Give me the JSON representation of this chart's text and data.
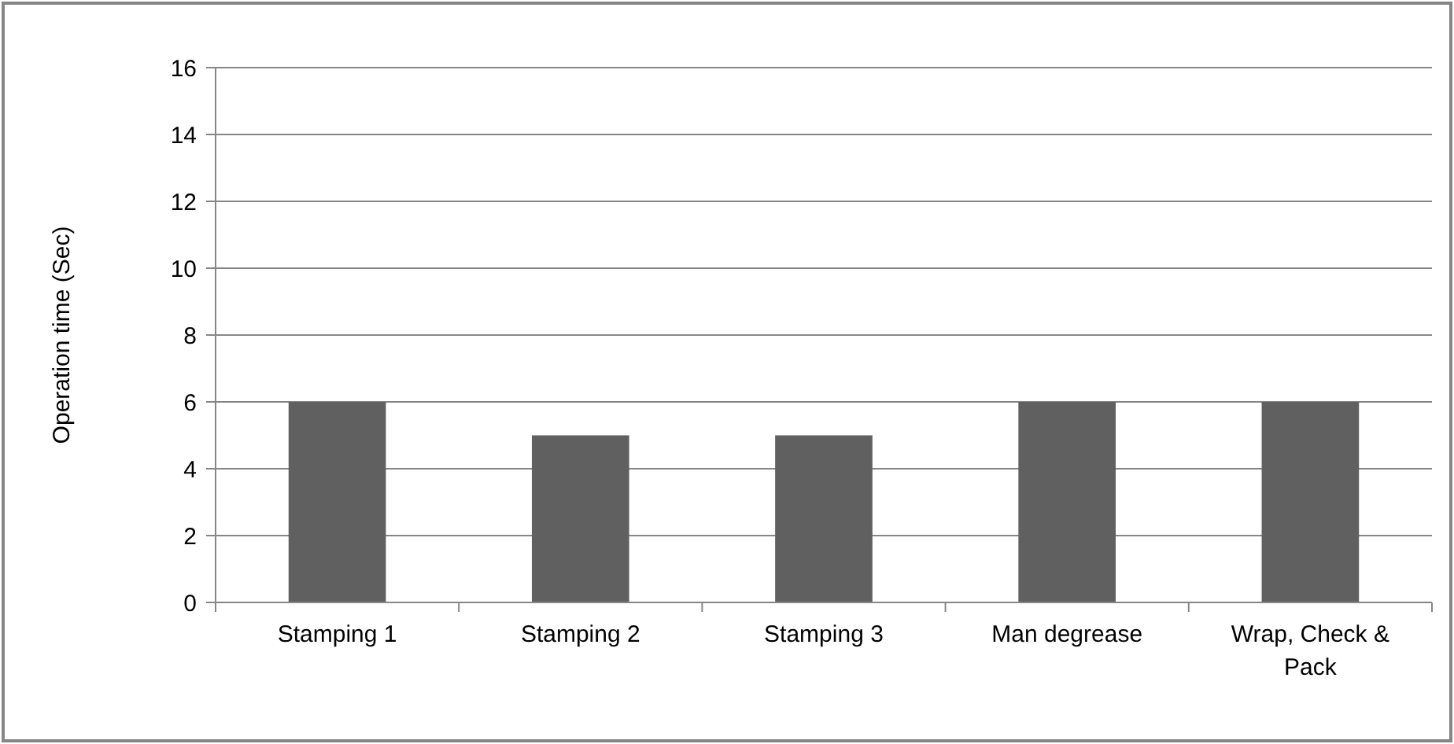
{
  "chart_data": {
    "type": "bar",
    "ylabel": "Operation time (Sec)",
    "categories": [
      "Stamping 1",
      "Stamping 2",
      "Stamping 3",
      "Man degrease",
      "Wrap, Check & Pack"
    ],
    "values": [
      6,
      5,
      5,
      6,
      6
    ],
    "color": "#606060",
    "ylim": [
      0,
      16
    ],
    "yticks": [
      0,
      2,
      4,
      6,
      8,
      10,
      12,
      14,
      16
    ],
    "grid": "y"
  }
}
